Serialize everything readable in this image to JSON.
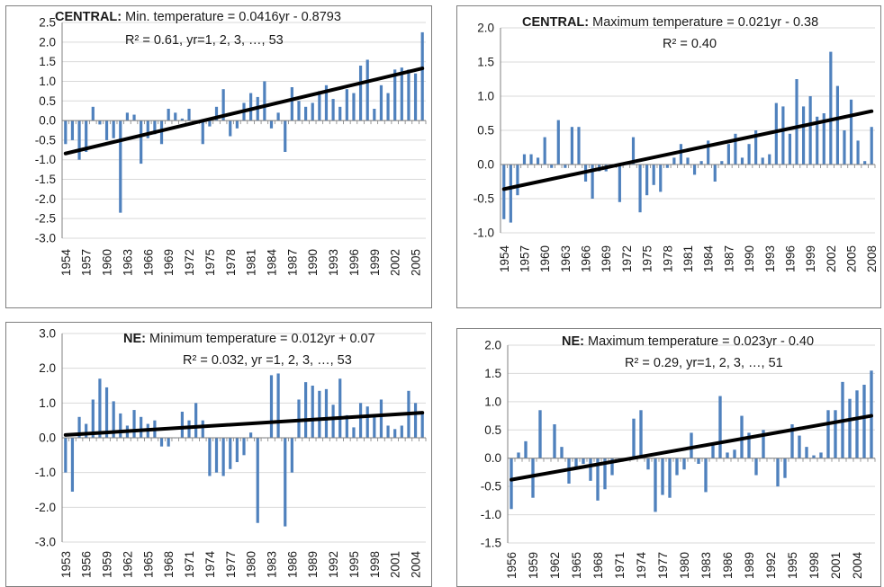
{
  "colors": {
    "bar": "#4f81bd",
    "trend": "#000000",
    "grid": "#d9d9d9",
    "axis": "#808080"
  },
  "chart_data": [
    {
      "type": "bar",
      "region": "CENTRAL:",
      "title": " Min. temperature = 0.0416yr - 0.8793",
      "equation2": "R² = 0.61, yr=1, 2, 3, …, 53",
      "ylim": [
        -3.0,
        2.5
      ],
      "ystep": 0.5,
      "ydec": 1,
      "x_start": 1954,
      "x_end": 2006,
      "xticks": [
        "1954",
        "1957",
        "1960",
        "1963",
        "1966",
        "1969",
        "1972",
        "1975",
        "1978",
        "1981",
        "1984",
        "1987",
        "1990",
        "1993",
        "1996",
        "1999",
        "2002",
        "2005"
      ],
      "trend": {
        "start": -0.84,
        "end": 1.33
      },
      "values": [
        -0.6,
        -0.5,
        -1.0,
        -0.8,
        0.35,
        -0.1,
        -0.5,
        -0.45,
        -2.35,
        0.2,
        0.15,
        -1.1,
        -0.45,
        -0.35,
        -0.6,
        0.3,
        0.2,
        0.05,
        0.3,
        0.0,
        -0.6,
        -0.15,
        0.35,
        0.8,
        -0.4,
        -0.2,
        0.45,
        0.7,
        0.6,
        1.0,
        -0.2,
        0.2,
        -0.8,
        0.85,
        0.5,
        0.35,
        0.45,
        0.75,
        0.9,
        0.55,
        0.35,
        0.8,
        0.7,
        1.4,
        1.55,
        0.3,
        0.9,
        0.7,
        1.3,
        1.35,
        1.3,
        1.2,
        2.25
      ]
    },
    {
      "type": "bar",
      "region": "CENTRAL:",
      "title": " Maximum temperature = 0.021yr - 0.38",
      "equation2": "R² = 0.40",
      "ylim": [
        -1.0,
        2.0
      ],
      "ystep": 0.5,
      "ydec": 1,
      "x_start": 1954,
      "x_end": 2008,
      "xticks": [
        "1954",
        "1957",
        "1960",
        "1963",
        "1966",
        "1969",
        "1972",
        "1975",
        "1978",
        "1981",
        "1984",
        "1987",
        "1990",
        "1993",
        "1996",
        "1999",
        "2002",
        "2005",
        "2008"
      ],
      "trend": {
        "start": -0.36,
        "end": 0.78
      },
      "values": [
        -0.8,
        -0.85,
        -0.45,
        0.15,
        0.15,
        0.1,
        0.4,
        -0.05,
        0.65,
        -0.05,
        0.55,
        0.55,
        -0.25,
        -0.5,
        -0.1,
        -0.1,
        0.0,
        -0.55,
        0.0,
        0.4,
        -0.7,
        -0.45,
        -0.3,
        -0.4,
        -0.05,
        0.1,
        0.3,
        0.1,
        -0.15,
        0.05,
        0.35,
        -0.25,
        0.05,
        0.3,
        0.45,
        0.1,
        0.3,
        0.5,
        0.1,
        0.15,
        0.9,
        0.85,
        0.45,
        1.25,
        0.85,
        1.0,
        0.7,
        0.75,
        1.65,
        1.15,
        0.5,
        0.95,
        0.35,
        0.05,
        0.55
      ]
    },
    {
      "type": "bar",
      "region": "NE:",
      "title": " Minimum temperature = 0.012yr + 0.07",
      "equation2": "R² = 0.032, yr =1, 2, 3, …, 53",
      "ylim": [
        -3.0,
        3.0
      ],
      "ystep": 1.0,
      "ydec": 1,
      "x_start": 1953,
      "x_end": 2005,
      "xticks": [
        "1953",
        "1956",
        "1959",
        "1962",
        "1965",
        "1968",
        "1971",
        "1974",
        "1977",
        "1980",
        "1983",
        "1986",
        "1989",
        "1992",
        "1995",
        "1998",
        "2001",
        "2004"
      ],
      "trend": {
        "start": 0.08,
        "end": 0.72
      },
      "values": [
        -1.0,
        -1.55,
        0.6,
        0.4,
        1.1,
        1.7,
        1.45,
        1.05,
        0.7,
        0.35,
        0.8,
        0.6,
        0.4,
        0.5,
        -0.25,
        -0.25,
        0.0,
        0.75,
        0.5,
        1.0,
        0.5,
        -1.1,
        -1.0,
        -1.1,
        -0.9,
        -0.7,
        -0.5,
        0.15,
        -2.45,
        0.0,
        1.8,
        1.85,
        -2.55,
        -1.0,
        1.1,
        1.6,
        1.5,
        1.35,
        1.4,
        0.95,
        1.7,
        0.65,
        0.3,
        1.0,
        0.9,
        0.6,
        1.1,
        0.35,
        0.25,
        0.35,
        1.35,
        1.0,
        0.75
      ]
    },
    {
      "type": "bar",
      "region": "NE:",
      "title": " Maximum temperature = 0.023yr - 0.40",
      "equation2": "R² = 0.29, yr=1, 2, 3, …, 51",
      "ylim": [
        -1.5,
        2.0
      ],
      "ystep": 0.5,
      "ydec": 1,
      "x_start": 1956,
      "x_end": 2006,
      "xticks": [
        "1956",
        "1959",
        "1962",
        "1965",
        "1968",
        "1971",
        "1974",
        "1977",
        "1980",
        "1983",
        "1986",
        "1989",
        "1992",
        "1995",
        "1998",
        "2001",
        "2004"
      ],
      "trend": {
        "start": -0.38,
        "end": 0.75
      },
      "values": [
        -0.9,
        0.1,
        0.3,
        -0.7,
        0.85,
        0.0,
        0.6,
        0.2,
        -0.45,
        -0.15,
        -0.1,
        -0.4,
        -0.75,
        -0.55,
        -0.3,
        0.0,
        0.0,
        0.7,
        0.85,
        -0.2,
        -0.95,
        -0.65,
        -0.7,
        -0.3,
        -0.2,
        0.45,
        -0.1,
        -0.6,
        0.25,
        1.1,
        0.1,
        0.15,
        0.75,
        0.45,
        -0.3,
        0.5,
        0.0,
        -0.5,
        -0.35,
        0.6,
        0.4,
        0.2,
        0.05,
        0.1,
        0.85,
        0.85,
        1.35,
        1.05,
        1.2,
        1.3,
        1.55
      ]
    }
  ]
}
